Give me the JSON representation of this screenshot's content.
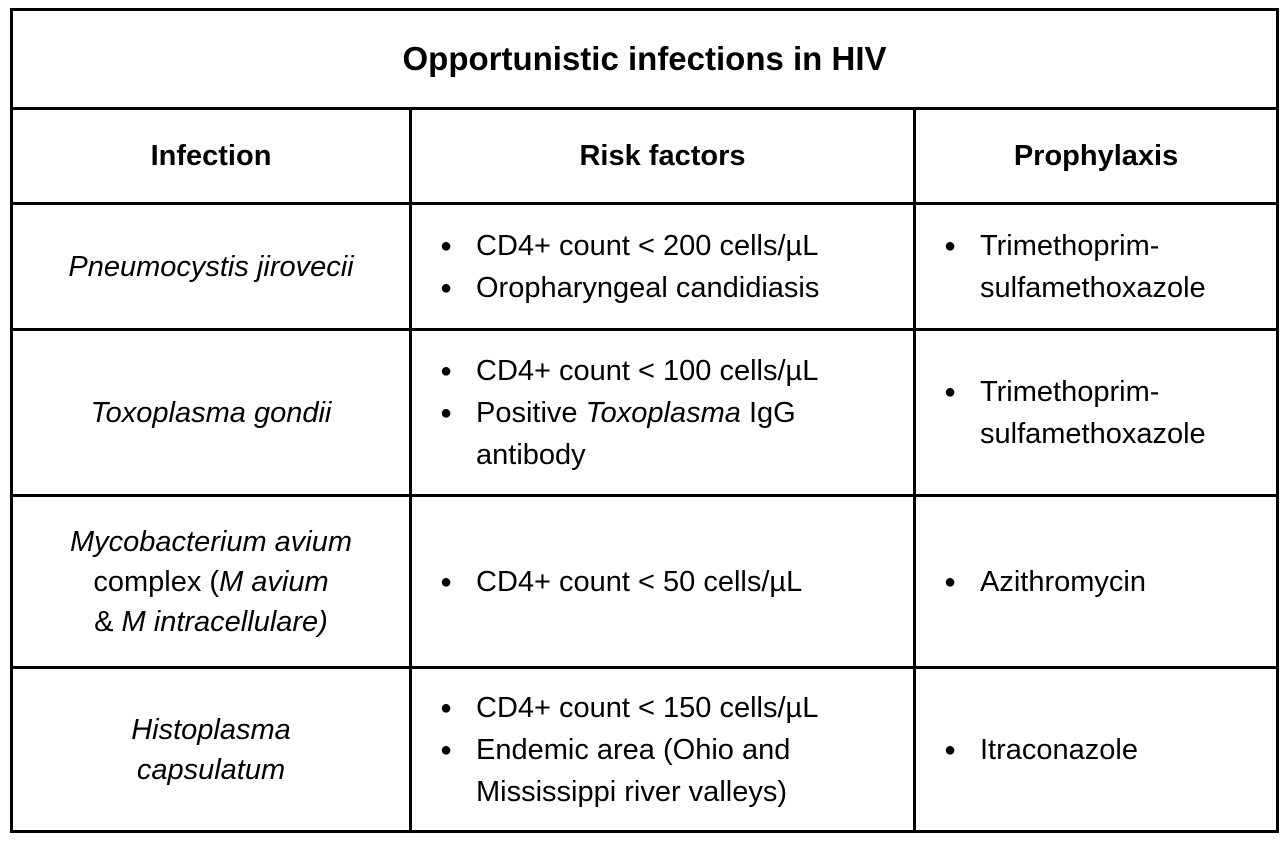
{
  "title": "Opportunistic infections in HIV",
  "headers": {
    "infection": "Infection",
    "risk_factors": "Risk factors",
    "prophylaxis": "Prophylaxis"
  },
  "rows": [
    {
      "infection": {
        "part1": "Pneumocystis jirovecii"
      },
      "risk_factors": [
        {
          "text": "CD4+ count < 200 cells/µL"
        },
        {
          "text": "Oropharyngeal candidiasis"
        }
      ],
      "prophylaxis": [
        "Trimethoprim-sulfamethoxazole"
      ]
    },
    {
      "infection": {
        "part1": "Toxoplasma gondii"
      },
      "risk_factors": [
        {
          "text": "CD4+ count < 100 cells/µL"
        },
        {
          "pre": "Positive ",
          "em": "Toxoplasma",
          "post": " IgG antibody"
        }
      ],
      "prophylaxis": [
        "Trimethoprim-sulfamethoxazole"
      ]
    },
    {
      "infection": {
        "line1_em": "Mycobacterium avium",
        "line2_pre": "complex (",
        "line2_em": "M avium",
        "line3_pre": "& ",
        "line3_em": "M intracellulare)"
      },
      "risk_factors": [
        {
          "text": "CD4+ count < 50 cells/µL"
        }
      ],
      "prophylaxis": [
        "Azithromycin"
      ]
    },
    {
      "infection": {
        "line1": "Histoplasma",
        "line2": "capsulatum"
      },
      "risk_factors": [
        {
          "text": "CD4+ count < 150 cells/µL"
        },
        {
          "text": "Endemic area (Ohio and Mississippi river valleys)"
        }
      ],
      "prophylaxis": [
        "Itraconazole"
      ]
    }
  ]
}
